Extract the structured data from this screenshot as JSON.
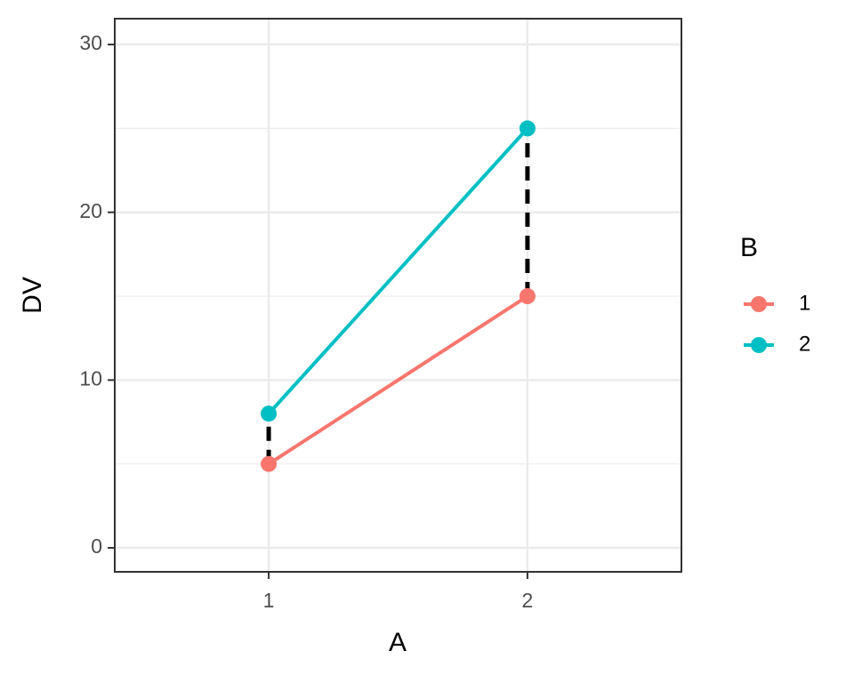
{
  "chart_data": {
    "type": "line",
    "x_label": "A",
    "y_label": "DV",
    "legend_title": "B",
    "x": [
      1,
      2
    ],
    "series": [
      {
        "name": "1",
        "color": "#F8766D",
        "values": [
          5,
          15
        ]
      },
      {
        "name": "2",
        "color": "#00BFC4",
        "values": [
          8,
          25
        ]
      }
    ],
    "xlim": [
      0.405,
      2.595
    ],
    "xticks": [
      1,
      2
    ],
    "ylim": [
      -1.43,
      31.54
    ],
    "yticks": [
      0,
      10,
      20,
      30
    ],
    "y_minor_ticks": [
      5,
      15,
      25
    ],
    "grid": true,
    "legend": "right",
    "connector": {
      "style": "dashed",
      "color": "#000000"
    }
  }
}
